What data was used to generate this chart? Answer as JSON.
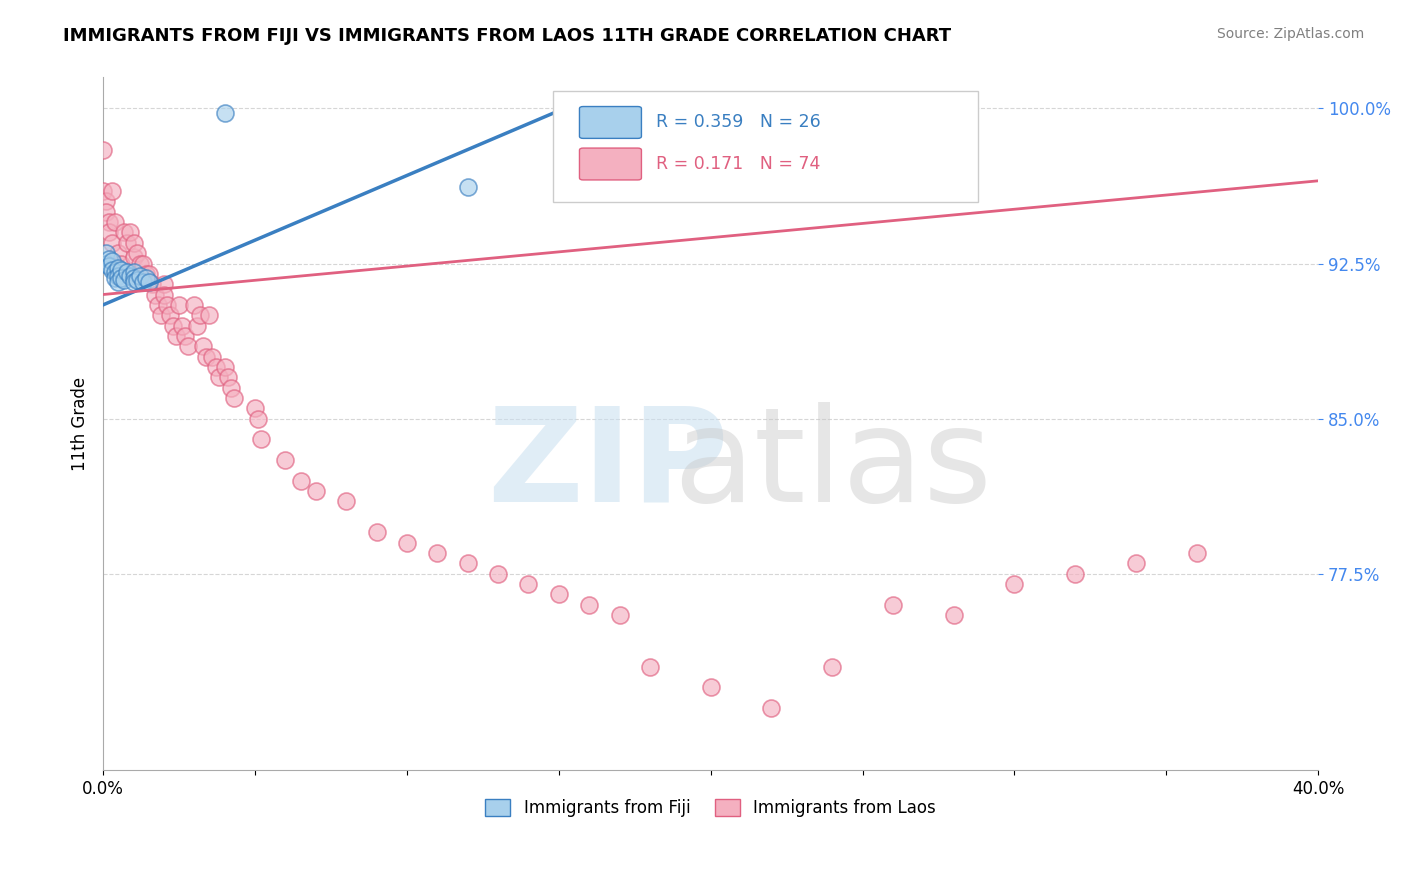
{
  "title": "IMMIGRANTS FROM FIJI VS IMMIGRANTS FROM LAOS 11TH GRADE CORRELATION CHART",
  "source": "Source: ZipAtlas.com",
  "ylabel": "11th Grade",
  "xlim": [
    0.0,
    0.4
  ],
  "ylim": [
    0.68,
    1.015
  ],
  "xticks": [
    0.0,
    0.05,
    0.1,
    0.15,
    0.2,
    0.25,
    0.3,
    0.35,
    0.4
  ],
  "xtick_labels": [
    "0.0%",
    "",
    "",
    "",
    "",
    "",
    "",
    "",
    "40.0%"
  ],
  "yticks": [
    0.775,
    0.85,
    0.925,
    1.0
  ],
  "ytick_labels": [
    "77.5%",
    "85.0%",
    "92.5%",
    "100.0%"
  ],
  "legend_fiji": "Immigrants from Fiji",
  "legend_laos": "Immigrants from Laos",
  "r_fiji": 0.359,
  "n_fiji": 26,
  "r_laos": 0.171,
  "n_laos": 74,
  "fiji_color": "#a8d0ec",
  "laos_color": "#f4b0c0",
  "fiji_line_color": "#3a7fc1",
  "laos_line_color": "#e06080",
  "background_color": "#ffffff",
  "grid_color": "#cccccc",
  "fiji_trend_x0": 0.0,
  "fiji_trend_y0": 0.905,
  "fiji_trend_x1": 0.155,
  "fiji_trend_y1": 1.002,
  "laos_trend_x0": 0.0,
  "laos_trend_y0": 0.91,
  "laos_trend_x1": 0.4,
  "laos_trend_y1": 0.965,
  "fiji_x": [
    0.04,
    0.12,
    0.001,
    0.001,
    0.002,
    0.002,
    0.003,
    0.003,
    0.004,
    0.004,
    0.005,
    0.005,
    0.005,
    0.006,
    0.006,
    0.007,
    0.008,
    0.009,
    0.01,
    0.01,
    0.01,
    0.011,
    0.012,
    0.013,
    0.014,
    0.015
  ],
  "fiji_y": [
    0.998,
    0.962,
    0.93,
    0.925,
    0.927,
    0.924,
    0.926,
    0.922,
    0.921,
    0.918,
    0.923,
    0.919,
    0.916,
    0.922,
    0.918,
    0.917,
    0.921,
    0.919,
    0.921,
    0.918,
    0.916,
    0.917,
    0.919,
    0.916,
    0.918,
    0.916
  ],
  "laos_x": [
    0.0,
    0.0,
    0.001,
    0.001,
    0.002,
    0.002,
    0.003,
    0.003,
    0.004,
    0.005,
    0.006,
    0.007,
    0.008,
    0.009,
    0.01,
    0.01,
    0.011,
    0.012,
    0.013,
    0.014,
    0.015,
    0.016,
    0.017,
    0.018,
    0.019,
    0.02,
    0.02,
    0.021,
    0.022,
    0.023,
    0.024,
    0.025,
    0.026,
    0.027,
    0.028,
    0.03,
    0.031,
    0.032,
    0.033,
    0.034,
    0.035,
    0.036,
    0.037,
    0.038,
    0.04,
    0.041,
    0.042,
    0.043,
    0.05,
    0.051,
    0.052,
    0.06,
    0.065,
    0.07,
    0.08,
    0.09,
    0.1,
    0.11,
    0.12,
    0.13,
    0.14,
    0.15,
    0.16,
    0.17,
    0.18,
    0.2,
    0.22,
    0.24,
    0.26,
    0.28,
    0.3,
    0.32,
    0.34,
    0.36
  ],
  "laos_y": [
    0.98,
    0.96,
    0.955,
    0.95,
    0.945,
    0.94,
    0.96,
    0.935,
    0.945,
    0.93,
    0.925,
    0.94,
    0.935,
    0.94,
    0.928,
    0.935,
    0.93,
    0.925,
    0.925,
    0.92,
    0.92,
    0.915,
    0.91,
    0.905,
    0.9,
    0.915,
    0.91,
    0.905,
    0.9,
    0.895,
    0.89,
    0.905,
    0.895,
    0.89,
    0.885,
    0.905,
    0.895,
    0.9,
    0.885,
    0.88,
    0.9,
    0.88,
    0.875,
    0.87,
    0.875,
    0.87,
    0.865,
    0.86,
    0.855,
    0.85,
    0.84,
    0.83,
    0.82,
    0.815,
    0.81,
    0.795,
    0.79,
    0.785,
    0.78,
    0.775,
    0.77,
    0.765,
    0.76,
    0.755,
    0.73,
    0.72,
    0.71,
    0.73,
    0.76,
    0.755,
    0.77,
    0.775,
    0.78,
    0.785
  ]
}
